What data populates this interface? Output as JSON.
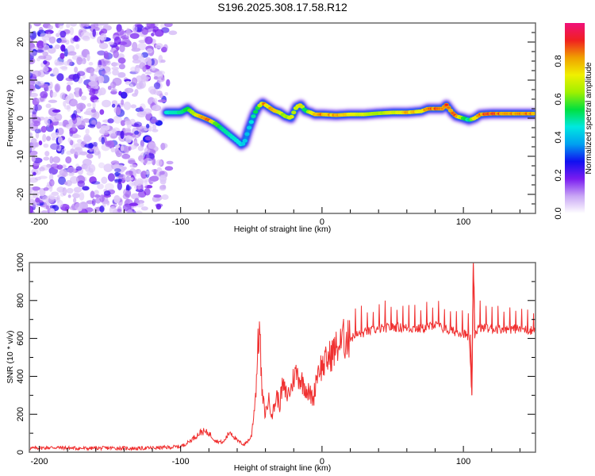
{
  "figure_title": "S196.2025.308.17.58.R12",
  "chart_data": [
    {
      "type": "heatmap",
      "title": "",
      "xlabel": "Height of straight line (km)",
      "ylabel": "Frequency (Hz)",
      "xlim": [
        -207,
        151
      ],
      "ylim": [
        -25,
        25
      ],
      "xticks": [
        -200,
        -100,
        0,
        100
      ],
      "xtick_labels": [
        "-200",
        "-100",
        "0",
        "100"
      ],
      "yticks": [
        -20,
        -10,
        0,
        10,
        20
      ],
      "ytick_labels": [
        "-20",
        "-10",
        "0",
        "10",
        "20"
      ],
      "colorbar": {
        "label": "Normalized spectral amplitude",
        "range": [
          0.0,
          1.0
        ],
        "ticks": [
          0.0,
          0.2,
          0.4,
          0.6,
          0.8
        ],
        "tick_labels": [
          "0.0",
          "0.2",
          "0.4",
          "0.6",
          "0.8"
        ],
        "colormap": [
          "#ffffff",
          "#c9a6f5",
          "#7a1cf0",
          "#1010f0",
          "#00a0f0",
          "#00e8e0",
          "#00e040",
          "#a0f000",
          "#f0f000",
          "#f0a000",
          "#f02020",
          "#f0107a"
        ]
      },
      "noise_region_x": [
        -207,
        -105
      ],
      "ridge": {
        "x": [
          -110,
          -100,
          -95,
          -90,
          -85,
          -80,
          -75,
          -70,
          -65,
          -60,
          -57,
          -55,
          -52,
          -48,
          -45,
          -42,
          -38,
          -34,
          -30,
          -26,
          -22,
          -18,
          -15,
          -12,
          -8,
          -5,
          0,
          10,
          20,
          30,
          40,
          50,
          60,
          70,
          75,
          80,
          85,
          88,
          92,
          95,
          100,
          104,
          108,
          112,
          120,
          130,
          140,
          151
        ],
        "freq": [
          1.5,
          1.5,
          2.5,
          1.0,
          0.3,
          -0.5,
          -1.5,
          -3.0,
          -4.5,
          -6.0,
          -7.0,
          -6.5,
          -3.0,
          1.0,
          3.0,
          4.0,
          3.0,
          2.0,
          1.5,
          0.5,
          0.0,
          3.0,
          3.5,
          2.0,
          1.5,
          1.0,
          1.0,
          0.8,
          1.0,
          1.0,
          1.3,
          1.5,
          1.5,
          1.8,
          2.5,
          2.5,
          2.5,
          3.5,
          1.5,
          0.5,
          0.0,
          -0.5,
          0.0,
          1.0,
          1.2,
          1.2,
          1.2,
          1.2
        ],
        "amplitude": [
          0.3,
          0.35,
          0.45,
          0.7,
          0.9,
          0.95,
          0.5,
          0.35,
          0.3,
          0.3,
          0.25,
          0.2,
          0.2,
          0.35,
          0.5,
          0.9,
          0.8,
          0.9,
          0.7,
          0.6,
          0.7,
          0.65,
          0.8,
          0.35,
          0.7,
          0.9,
          0.9,
          0.85,
          0.75,
          0.7,
          0.6,
          0.7,
          0.85,
          0.8,
          0.9,
          0.95,
          0.9,
          0.95,
          0.9,
          0.9,
          0.5,
          0.3,
          0.85,
          0.9,
          0.95,
          0.95,
          0.9,
          0.9
        ]
      }
    },
    {
      "type": "line",
      "title": "",
      "xlabel": "Height of straight line (km)",
      "ylabel": "SNR (10 * v/v)",
      "xlim": [
        -207,
        151
      ],
      "ylim": [
        0,
        1000
      ],
      "xticks": [
        -200,
        -100,
        0,
        100
      ],
      "xtick_labels": [
        "-200",
        "-100",
        "0",
        "100"
      ],
      "yticks": [
        0,
        200,
        400,
        600,
        800,
        1000
      ],
      "ytick_labels": [
        "0",
        "200",
        "400",
        "600",
        "800",
        "1000"
      ],
      "series": [
        {
          "name": "SNR",
          "color": "#f03030",
          "x": [
            -207,
            -190,
            -170,
            -150,
            -130,
            -110,
            -100,
            -95,
            -90,
            -85,
            -80,
            -75,
            -70,
            -65,
            -60,
            -55,
            -50,
            -47,
            -45,
            -44,
            -43,
            -42,
            -40,
            -38,
            -35,
            -32,
            -30,
            -28,
            -25,
            -22,
            -20,
            -18,
            -15,
            -12,
            -10,
            -8,
            -6,
            -4,
            -2,
            0,
            5,
            10,
            15,
            20,
            25,
            30,
            35,
            40,
            50,
            60,
            70,
            75,
            80,
            90,
            100,
            104,
            106,
            107,
            108,
            109,
            110,
            112,
            120,
            130,
            140,
            151
          ],
          "y": [
            20,
            25,
            20,
            22,
            20,
            25,
            30,
            50,
            80,
            110,
            100,
            60,
            50,
            110,
            60,
            40,
            80,
            300,
            600,
            650,
            400,
            280,
            200,
            280,
            200,
            300,
            250,
            350,
            300,
            330,
            400,
            420,
            380,
            350,
            320,
            300,
            280,
            400,
            450,
            450,
            500,
            550,
            580,
            600,
            620,
            630,
            640,
            650,
            660,
            655,
            650,
            660,
            670,
            640,
            630,
            600,
            300,
            1000,
            620,
            640,
            650,
            655,
            650,
            650,
            650,
            640
          ],
          "spike_peaks_above_baseline": 150
        }
      ]
    }
  ]
}
